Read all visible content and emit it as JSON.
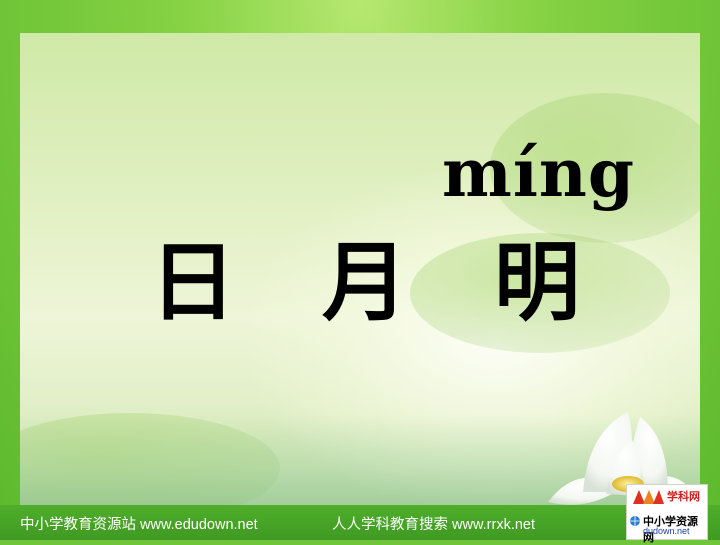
{
  "slide": {
    "pinyin": "míng",
    "characters": [
      "日",
      "月",
      "明"
    ]
  },
  "footer": {
    "left_text": "中小学教育资源站 www.edudown.net",
    "right_text": "人人学科教育搜索  www.rrxk.net"
  },
  "logo": {
    "top_label": "学科网",
    "middle_label": "中小学资源网",
    "bottom_label": "dudown.net"
  },
  "colors": {
    "frame_green": "#6fc63a",
    "text": "#000000",
    "footer_text": "#ffffff"
  }
}
